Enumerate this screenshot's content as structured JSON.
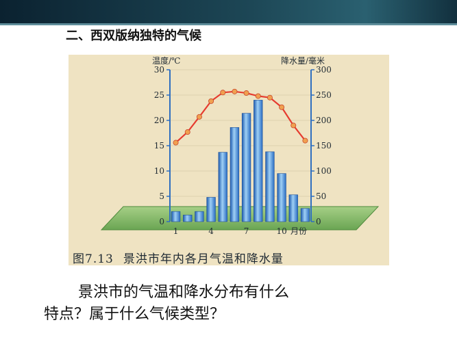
{
  "slide": {
    "title": "二、西双版纳独特的气候",
    "question_line1": "景洪市的气温和降水分布有什么",
    "question_line2": "特点？属于什么气候类型？"
  },
  "figure": {
    "number": "图7.13",
    "caption": "景洪市年内各月气温和降水量"
  },
  "chart_data": {
    "type": "bar+line",
    "title": "",
    "x": [
      1,
      2,
      3,
      4,
      5,
      6,
      7,
      8,
      9,
      10,
      11,
      12
    ],
    "x_tick_labels": [
      "1",
      "4",
      "7",
      "10"
    ],
    "x_tick_months": [
      1,
      4,
      7,
      10
    ],
    "xlabel": "月份",
    "temperature": {
      "axis_label": "温度/℃",
      "ylim": [
        0,
        30
      ],
      "ticks": [
        0,
        5,
        10,
        15,
        20,
        25,
        30
      ],
      "values": [
        15.6,
        17.7,
        20.7,
        23.8,
        25.5,
        25.7,
        25.4,
        24.8,
        24.5,
        22.6,
        19.0,
        16.0
      ],
      "color": "#e63b2f",
      "marker_color": "#f0a050"
    },
    "precipitation": {
      "axis_label": "降水量/毫米",
      "ylim": [
        0,
        300
      ],
      "ticks": [
        0,
        50,
        100,
        150,
        200,
        250,
        300
      ],
      "values": [
        20,
        13,
        20,
        48,
        137,
        186,
        214,
        240,
        138,
        95,
        53,
        26
      ],
      "color": "#3d7fd0"
    }
  }
}
